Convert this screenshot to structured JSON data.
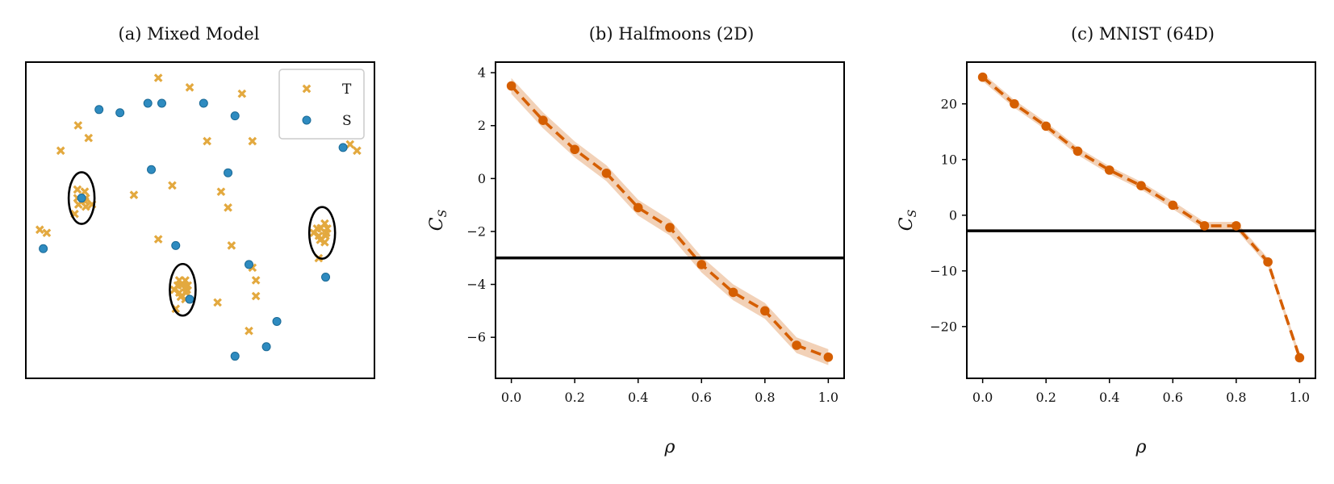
{
  "chart_data": [
    {
      "type": "scatter",
      "title": "(a) Mixed Model",
      "xlabel": "",
      "ylabel": "",
      "axes_visible": false,
      "legend": {
        "placement": "top-right",
        "entries": [
          "T",
          "S"
        ]
      },
      "colors": {
        "T": "#e3a93f",
        "S": "#2e8bc0"
      },
      "series": [
        {
          "name": "T",
          "marker": "x",
          "points": [
            [
              0.38,
              0.95
            ],
            [
              0.47,
              0.92
            ],
            [
              0.62,
              0.9
            ],
            [
              0.15,
              0.8
            ],
            [
              0.18,
              0.76
            ],
            [
              0.52,
              0.75
            ],
            [
              0.65,
              0.75
            ],
            [
              0.1,
              0.72
            ],
            [
              0.31,
              0.58
            ],
            [
              0.42,
              0.61
            ],
            [
              0.56,
              0.59
            ],
            [
              0.17,
              0.56
            ],
            [
              0.14,
              0.52
            ],
            [
              0.58,
              0.54
            ],
            [
              0.04,
              0.47
            ],
            [
              0.06,
              0.46
            ],
            [
              0.38,
              0.44
            ],
            [
              0.59,
              0.42
            ],
            [
              0.19,
              0.55
            ],
            [
              0.84,
              0.38
            ],
            [
              0.65,
              0.35
            ],
            [
              0.66,
              0.31
            ],
            [
              0.66,
              0.26
            ],
            [
              0.55,
              0.24
            ],
            [
              0.43,
              0.22
            ],
            [
              0.64,
              0.15
            ],
            [
              0.93,
              0.74
            ],
            [
              0.95,
              0.72
            ],
            [
              0.46,
              0.29
            ],
            [
              0.44,
              0.31
            ]
          ]
        },
        {
          "name": "S",
          "marker": "o",
          "points": [
            [
              0.21,
              0.85
            ],
            [
              0.27,
              0.84
            ],
            [
              0.35,
              0.87
            ],
            [
              0.39,
              0.87
            ],
            [
              0.51,
              0.87
            ],
            [
              0.6,
              0.83
            ],
            [
              0.91,
              0.73
            ],
            [
              0.36,
              0.66
            ],
            [
              0.58,
              0.65
            ],
            [
              0.16,
              0.57
            ],
            [
              0.43,
              0.42
            ],
            [
              0.05,
              0.41
            ],
            [
              0.64,
              0.36
            ],
            [
              0.86,
              0.32
            ],
            [
              0.47,
              0.25
            ],
            [
              0.72,
              0.18
            ],
            [
              0.6,
              0.07
            ],
            [
              0.69,
              0.1
            ]
          ]
        }
      ],
      "clusters": [
        {
          "center": [
            0.16,
            0.57
          ],
          "t_count": 6
        },
        {
          "center": [
            0.45,
            0.28
          ],
          "t_count": 10
        },
        {
          "center": [
            0.85,
            0.46
          ],
          "t_count": 10
        }
      ]
    },
    {
      "type": "line",
      "title": "(b) Halfmoons (2D)",
      "xlabel": "ρ",
      "ylabel": "C",
      "ylabel_subscript": "S",
      "xlim": [
        -0.05,
        1.05
      ],
      "ylim": [
        -7.55,
        4.4
      ],
      "xticks": [
        0.0,
        0.2,
        0.4,
        0.6,
        0.8,
        1.0
      ],
      "xtick_labels": [
        "0.0",
        "0.2",
        "0.4",
        "0.6",
        "0.8",
        "1.0"
      ],
      "yticks": [
        4,
        2,
        0,
        -2,
        -4,
        -6
      ],
      "ytick_labels": [
        "4",
        "2",
        "0",
        "−2",
        "−4",
        "−6"
      ],
      "x": [
        0.0,
        0.1,
        0.2,
        0.3,
        0.4,
        0.5,
        0.6,
        0.7,
        0.8,
        0.9,
        1.0
      ],
      "series": [
        {
          "values": [
            3.5,
            2.2,
            1.1,
            0.2,
            -1.1,
            -1.85,
            -3.25,
            -4.3,
            -5.0,
            -6.3,
            -6.75
          ],
          "band": 0.3
        }
      ],
      "hline": -3.0,
      "colors": {
        "line": "#d55e00",
        "band": "#f0c9aa",
        "hline": "#000000"
      }
    },
    {
      "type": "line",
      "title": "(c) MNIST (64D)",
      "xlabel": "ρ",
      "ylabel": "C",
      "ylabel_subscript": "S",
      "xlim": [
        -0.05,
        1.05
      ],
      "ylim": [
        -29.3,
        27.5
      ],
      "xticks": [
        0.0,
        0.2,
        0.4,
        0.6,
        0.8,
        1.0
      ],
      "xtick_labels": [
        "0.0",
        "0.2",
        "0.4",
        "0.6",
        "0.8",
        "1.0"
      ],
      "yticks": [
        20,
        10,
        0,
        -10,
        -20
      ],
      "ytick_labels": [
        "20",
        "10",
        "0",
        "−10",
        "−20"
      ],
      "x": [
        0.0,
        0.1,
        0.2,
        0.3,
        0.4,
        0.5,
        0.6,
        0.7,
        0.8,
        0.9,
        1.0
      ],
      "series": [
        {
          "values": [
            24.8,
            20.0,
            16.0,
            11.5,
            8.1,
            5.3,
            1.8,
            -1.9,
            -1.9,
            -8.4,
            -25.6
          ],
          "band": 0.7
        }
      ],
      "hline": -2.8,
      "colors": {
        "line": "#d55e00",
        "band": "#f0c9aa",
        "hline": "#000000"
      }
    }
  ]
}
